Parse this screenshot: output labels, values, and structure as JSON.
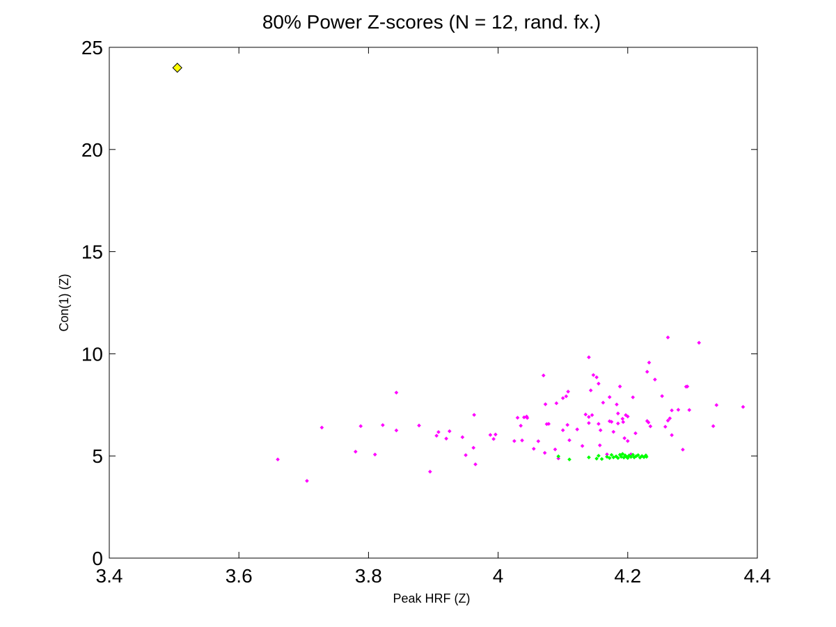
{
  "chart_data": {
    "type": "scatter",
    "title": "80% Power Z-scores (N = 12, rand. fx.)",
    "xlabel": "Peak HRF (Z)",
    "ylabel": "Con(1) (Z)",
    "xlim": [
      3.4,
      4.4
    ],
    "ylim": [
      0,
      25
    ],
    "xticks": [
      3.4,
      3.6,
      3.8,
      4.0,
      4.2,
      4.4
    ],
    "xtick_labels": [
      "3.4",
      "3.6",
      "3.8",
      "4",
      "4.2",
      "4.4"
    ],
    "yticks": [
      0,
      5,
      10,
      15,
      20,
      25
    ],
    "ytick_labels": [
      "0",
      "5",
      "10",
      "15",
      "20",
      "25"
    ],
    "grid": false,
    "series": [
      {
        "marker": "diamond",
        "color": "#ffff00",
        "points": [
          [
            3.505,
            24.0
          ]
        ]
      },
      {
        "marker": "dot",
        "color": "#ff00ff",
        "points": [
          [
            3.66,
            4.83
          ],
          [
            3.705,
            3.78
          ],
          [
            3.728,
            6.39
          ],
          [
            3.78,
            5.21
          ],
          [
            3.788,
            6.46
          ],
          [
            3.81,
            5.07
          ],
          [
            3.822,
            6.51
          ],
          [
            3.843,
            6.25
          ],
          [
            3.843,
            8.1
          ],
          [
            3.878,
            6.49
          ],
          [
            3.895,
            4.23
          ],
          [
            3.905,
            5.99
          ],
          [
            3.908,
            6.17
          ],
          [
            3.92,
            5.85
          ],
          [
            3.925,
            6.21
          ],
          [
            3.945,
            5.92
          ],
          [
            3.95,
            5.04
          ],
          [
            3.962,
            5.4
          ],
          [
            3.963,
            7.01
          ],
          [
            3.965,
            4.59
          ],
          [
            3.988,
            6.03
          ],
          [
            3.993,
            5.83
          ],
          [
            3.996,
            6.05
          ],
          [
            4.025,
            5.73
          ],
          [
            4.03,
            6.87
          ],
          [
            4.035,
            6.48
          ],
          [
            4.037,
            5.76
          ],
          [
            4.04,
            6.89
          ],
          [
            4.044,
            6.93
          ],
          [
            4.045,
            6.86
          ],
          [
            4.055,
            5.35
          ],
          [
            4.062,
            5.72
          ],
          [
            4.07,
            8.94
          ],
          [
            4.072,
            5.15
          ],
          [
            4.073,
            7.53
          ],
          [
            4.075,
            6.56
          ],
          [
            4.078,
            6.57
          ],
          [
            4.088,
            5.32
          ],
          [
            4.09,
            7.58
          ],
          [
            4.093,
            4.88
          ],
          [
            4.1,
            7.83
          ],
          [
            4.1,
            6.26
          ],
          [
            4.105,
            7.92
          ],
          [
            4.107,
            6.52
          ],
          [
            4.108,
            8.15
          ],
          [
            4.11,
            5.77
          ],
          [
            4.122,
            6.3
          ],
          [
            4.13,
            5.49
          ],
          [
            4.135,
            7.03
          ],
          [
            4.14,
            9.83
          ],
          [
            4.14,
            6.91
          ],
          [
            4.14,
            6.61
          ],
          [
            4.143,
            8.21
          ],
          [
            4.145,
            7.0
          ],
          [
            4.147,
            8.96
          ],
          [
            4.152,
            8.85
          ],
          [
            4.155,
            6.57
          ],
          [
            4.155,
            8.54
          ],
          [
            4.157,
            5.52
          ],
          [
            4.158,
            6.26
          ],
          [
            4.162,
            7.61
          ],
          [
            4.168,
            5.08
          ],
          [
            4.172,
            7.88
          ],
          [
            4.172,
            6.7
          ],
          [
            4.175,
            6.67
          ],
          [
            4.178,
            6.18
          ],
          [
            4.183,
            7.52
          ],
          [
            4.185,
            7.08
          ],
          [
            4.185,
            6.59
          ],
          [
            4.188,
            8.4
          ],
          [
            4.192,
            6.82
          ],
          [
            4.193,
            6.66
          ],
          [
            4.195,
            5.87
          ],
          [
            4.197,
            7.0
          ],
          [
            4.2,
            6.93
          ],
          [
            4.2,
            5.73
          ],
          [
            4.205,
            5.08
          ],
          [
            4.208,
            7.87
          ],
          [
            4.212,
            6.11
          ],
          [
            4.23,
            6.71
          ],
          [
            4.23,
            9.12
          ],
          [
            4.232,
            6.64
          ],
          [
            4.233,
            9.57
          ],
          [
            4.235,
            6.45
          ],
          [
            4.242,
            8.74
          ],
          [
            4.253,
            7.93
          ],
          [
            4.258,
            6.43
          ],
          [
            4.262,
            10.8
          ],
          [
            4.262,
            6.73
          ],
          [
            4.265,
            6.84
          ],
          [
            4.268,
            6.02
          ],
          [
            4.268,
            7.23
          ],
          [
            4.278,
            7.26
          ],
          [
            4.285,
            5.31
          ],
          [
            4.29,
            8.39
          ],
          [
            4.292,
            8.4
          ],
          [
            4.295,
            7.25
          ],
          [
            4.31,
            10.54
          ],
          [
            4.332,
            6.46
          ],
          [
            4.337,
            7.49
          ],
          [
            4.378,
            7.4
          ]
        ]
      },
      {
        "marker": "dot",
        "color": "#00ff00",
        "points": [
          [
            4.093,
            4.98
          ],
          [
            4.11,
            4.83
          ],
          [
            4.14,
            4.93
          ],
          [
            4.152,
            4.87
          ],
          [
            4.155,
            5.01
          ],
          [
            4.16,
            4.85
          ],
          [
            4.168,
            4.96
          ],
          [
            4.172,
            4.9
          ],
          [
            4.175,
            5.05
          ],
          [
            4.178,
            4.93
          ],
          [
            4.182,
            4.98
          ],
          [
            4.185,
            4.9
          ],
          [
            4.188,
            5.06
          ],
          [
            4.19,
            4.96
          ],
          [
            4.192,
            5.1
          ],
          [
            4.194,
            4.92
          ],
          [
            4.196,
            5.03
          ],
          [
            4.198,
            4.96
          ],
          [
            4.2,
            4.9
          ],
          [
            4.202,
            5.02
          ],
          [
            4.205,
            4.95
          ],
          [
            4.208,
            5.06
          ],
          [
            4.21,
            4.93
          ],
          [
            4.213,
            4.99
          ],
          [
            4.216,
            5.04
          ],
          [
            4.219,
            4.92
          ],
          [
            4.222,
            5.0
          ],
          [
            4.225,
            4.94
          ],
          [
            4.228,
            5.03
          ],
          [
            4.229,
            4.96
          ]
        ]
      }
    ]
  }
}
